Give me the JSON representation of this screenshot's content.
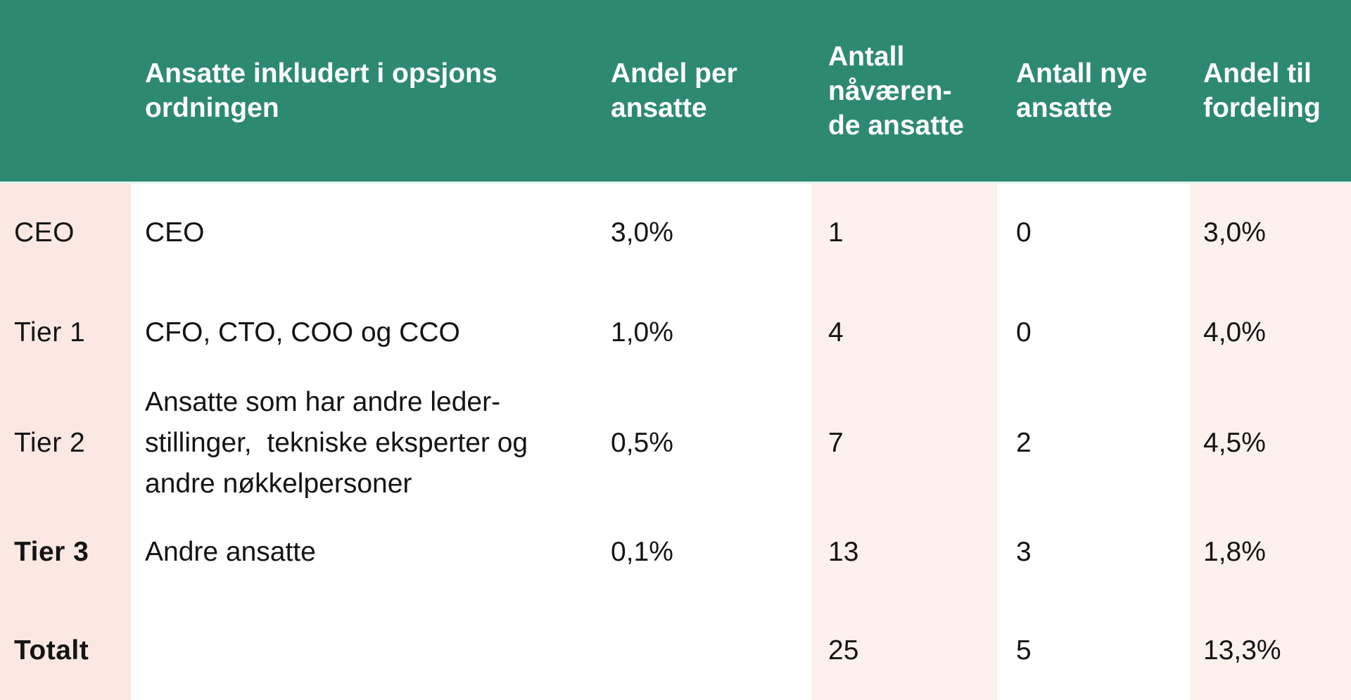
{
  "chart_data": {
    "type": "table",
    "title": "",
    "columns": [
      {
        "key": "tier",
        "label": ""
      },
      {
        "key": "description",
        "label": "Ansatte inkludert i opsjons\nordningen"
      },
      {
        "key": "andel_per_ansatte",
        "label": "Andel per\nansatte"
      },
      {
        "key": "antall_navaerende_ansatte",
        "label": "Antall\nnåværen-\nde ansatte"
      },
      {
        "key": "antall_nye_ansatte",
        "label": "Antall nye\nansatte"
      },
      {
        "key": "andel_til_fordeling",
        "label": "Andel til\nfordeling"
      }
    ],
    "rows": [
      {
        "tier": "CEO",
        "description": "CEO",
        "andel_per_ansatte": "3,0%",
        "antall_navaerende_ansatte": "1",
        "antall_nye_ansatte": "0",
        "andel_til_fordeling": "3,0%"
      },
      {
        "tier": "Tier 1",
        "description": "CFO, CTO, COO og CCO",
        "andel_per_ansatte": "1,0%",
        "antall_navaerende_ansatte": "4",
        "antall_nye_ansatte": "0",
        "andel_til_fordeling": "4,0%"
      },
      {
        "tier": "Tier 2",
        "description": "Ansatte som har andre leder-\nstillinger,  tekniske eksperter og\nandre nøkkelpersoner",
        "andel_per_ansatte": "0,5%",
        "antall_navaerende_ansatte": "7",
        "antall_nye_ansatte": "2",
        "andel_til_fordeling": "4,5%"
      },
      {
        "tier": "Tier 3",
        "description": "Andre ansatte",
        "andel_per_ansatte": "0,1%",
        "antall_navaerende_ansatte": "13",
        "antall_nye_ansatte": "3",
        "andel_til_fordeling": "1,8%"
      },
      {
        "tier": "Totalt",
        "description": "",
        "andel_per_ansatte": "",
        "antall_navaerende_ansatte": "25",
        "antall_nye_ansatte": "5",
        "andel_til_fordeling": "13,3%"
      }
    ],
    "colors": {
      "header_bg": "#2e8973",
      "row_label_column_bg": "#fbe8e2",
      "pink_column_bg": "#fdf1ed",
      "header_text": "#ffffff",
      "body_text": "#141414"
    },
    "layout_hints": {
      "pink_columns": [
        "tier",
        "antall_navaerende_ansatte",
        "andel_til_fordeling"
      ],
      "bold_row_labels": [
        "Tier 3",
        "Totalt"
      ]
    }
  }
}
